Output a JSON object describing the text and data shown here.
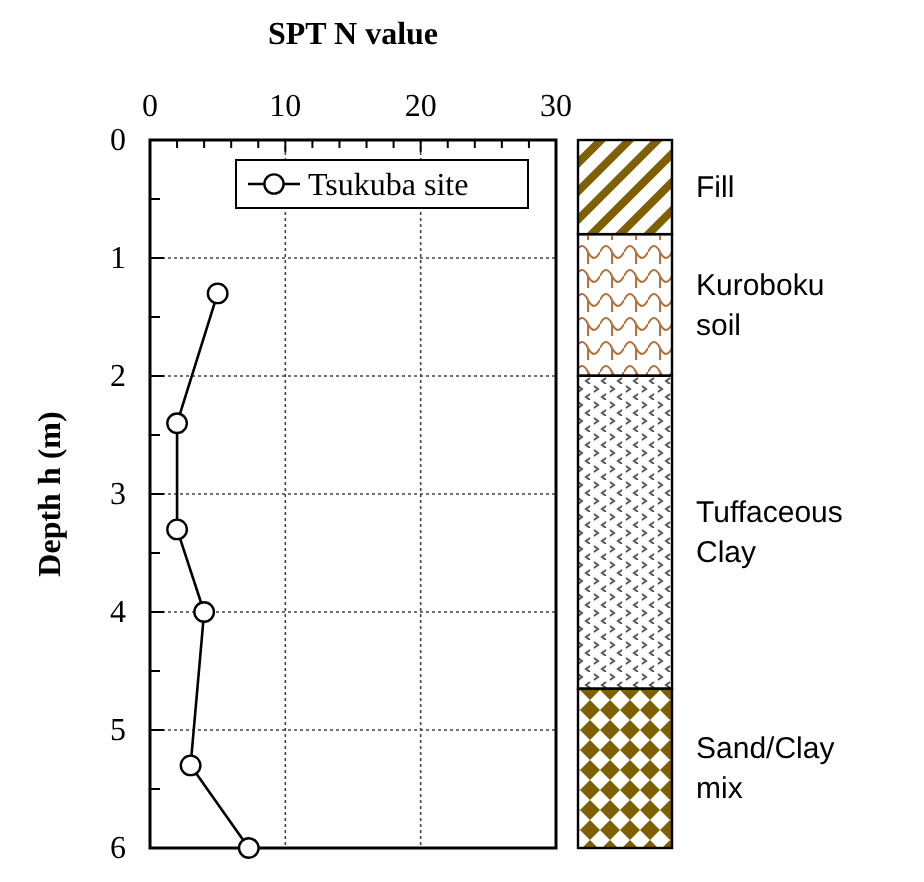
{
  "chart_data": {
    "type": "line",
    "xlabel": "SPT N value",
    "ylabel": "Depth h (m)",
    "x": [
      5,
      2,
      2,
      4,
      3,
      7.3
    ],
    "series": [
      {
        "name": "Tsukuba site",
        "color": "#000000",
        "values": [
          1.3,
          2.4,
          3.3,
          4.0,
          5.3,
          6.0
        ]
      }
    ],
    "xlim": [
      0,
      30
    ],
    "xticks": [
      0,
      {
        "value": 2,
        "label": null
      },
      {
        "value": 4,
        "label": null
      },
      {
        "value": 6,
        "label": null
      },
      {
        "value": 8,
        "label": null
      },
      10,
      {
        "value": 12,
        "label": null
      },
      {
        "value": 14,
        "label": null
      },
      {
        "value": 16,
        "label": null
      },
      {
        "value": 18,
        "label": null
      },
      20,
      {
        "value": 22,
        "label": null
      },
      {
        "value": 24,
        "label": null
      },
      {
        "value": 26,
        "label": null
      },
      {
        "value": 28,
        "label": null
      },
      30
    ],
    "ylim": [
      6,
      0
    ],
    "yticks": [
      0,
      {
        "value": 0.5,
        "label": null
      },
      1,
      {
        "value": 1.5,
        "label": null
      },
      2,
      {
        "value": 2.5,
        "label": null
      },
      3,
      {
        "value": 3.5,
        "label": null
      },
      4,
      {
        "value": 4.5,
        "label": null
      },
      5,
      {
        "value": 5.5,
        "label": null
      },
      6
    ],
    "grid": true,
    "legend": "top right",
    "marker": "circle",
    "line_style": "solid",
    "annotations": [
      "Fill",
      "Kuroboku soil",
      "Tuffaceous Clay",
      "Sand/Clay mix"
    ]
  }
}
